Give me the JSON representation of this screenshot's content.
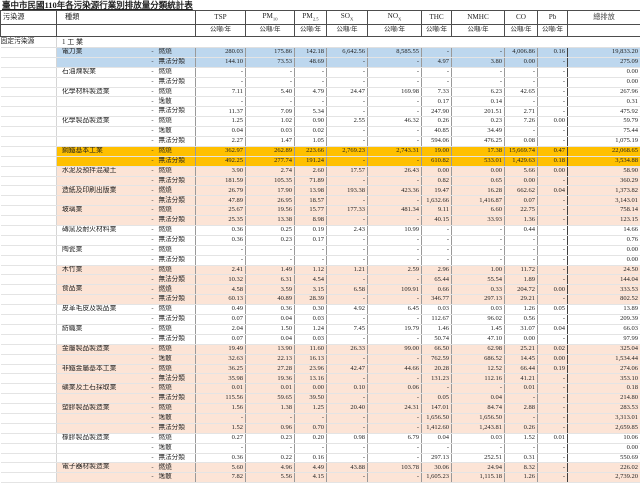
{
  "title": "臺中市民國110年各污染源行業別排放量分類統計表",
  "header": {
    "col_pollution_source": "污染源",
    "col_category": "種類",
    "unit": "公噸/年",
    "total_label": "總排放",
    "pollutants": [
      {
        "main": "TSP",
        "sub": ""
      },
      {
        "main": "PM",
        "sub": "10"
      },
      {
        "main": "PM",
        "sub": "2.5"
      },
      {
        "main": "SO",
        "sub": "X"
      },
      {
        "main": "NO",
        "sub": "X"
      },
      {
        "main": "THC",
        "sub": ""
      },
      {
        "main": "NMHC",
        "sub": ""
      },
      {
        "main": "CO",
        "sub": ""
      },
      {
        "main": "Pb",
        "sub": ""
      }
    ]
  },
  "source_group": {
    "source": "固定污染源",
    "sector": "1 工  業"
  },
  "colors": {
    "blue": "#BDD7EE",
    "gold": "#FFC000",
    "peach": "#FCE4D6",
    "white": "#FFFFFF"
  },
  "industries": [
    {
      "name": "電力業",
      "fill": "blue",
      "rows": [
        {
          "cat": "燃燒",
          "vals": [
            "280.03",
            "175.86",
            "142.18",
            "6,642.56",
            "8,585.55",
            "-",
            "-",
            "4,006.86",
            "0.16",
            "19,833.20"
          ]
        },
        {
          "cat": "無法分類",
          "vals": [
            "144.10",
            "73.53",
            "48.69",
            "-",
            "-",
            "4.97",
            "3.80",
            "0.00",
            "-",
            "275.09"
          ]
        }
      ]
    },
    {
      "name": "石油煉製業",
      "fill": "white",
      "rows": [
        {
          "cat": "燃燒",
          "vals": [
            "-",
            "-",
            "-",
            "-",
            "-",
            "-",
            "-",
            "-",
            "-",
            "0.00"
          ]
        },
        {
          "cat": "無法分類",
          "vals": [
            "-",
            "-",
            "-",
            "-",
            "-",
            "-",
            "-",
            "-",
            "-",
            "0.00"
          ]
        }
      ]
    },
    {
      "name": "化學材料製造業",
      "fill": "white",
      "rows": [
        {
          "cat": "燃燒",
          "vals": [
            "7.11",
            "5.40",
            "4.79",
            "24.47",
            "169.98",
            "7.33",
            "6.23",
            "42.65",
            "-",
            "267.96"
          ]
        },
        {
          "cat": "逸散",
          "vals": [
            "-",
            "-",
            "-",
            "-",
            "-",
            "0.17",
            "0.14",
            "-",
            "-",
            "0.31"
          ]
        },
        {
          "cat": "無法分類",
          "vals": [
            "11.37",
            "7.09",
            "5.34",
            "-",
            "-",
            "247.90",
            "201.51",
            "2.71",
            "-",
            "475.92"
          ]
        }
      ]
    },
    {
      "name": "化學製品製造業",
      "fill": "white",
      "rows": [
        {
          "cat": "燃燒",
          "vals": [
            "1.25",
            "1.02",
            "0.90",
            "2.55",
            "46.32",
            "0.26",
            "0.23",
            "7.26",
            "0.00",
            "59.79"
          ]
        },
        {
          "cat": "逸散",
          "vals": [
            "0.04",
            "0.03",
            "0.02",
            "-",
            "-",
            "40.85",
            "34.49",
            "-",
            "-",
            "75.44"
          ]
        },
        {
          "cat": "無法分類",
          "vals": [
            "2.27",
            "1.47",
            "1.05",
            "-",
            "-",
            "594.06",
            "476.25",
            "0.08",
            "-",
            "1,075.19"
          ]
        }
      ]
    },
    {
      "name": "鋼鐵基本工業",
      "fill": "gold",
      "rows": [
        {
          "cat": "燃燒",
          "vals": [
            "362.97",
            "262.89",
            "223.66",
            "2,769.23",
            "2,743.31",
            "19.00",
            "17.38",
            "15,669.74",
            "0.47",
            "22,068.65"
          ]
        },
        {
          "cat": "無法分類",
          "vals": [
            "492.25",
            "277.74",
            "191.24",
            "-",
            "-",
            "610.82",
            "533.01",
            "1,429.63",
            "0.18",
            "3,534.88"
          ]
        }
      ]
    },
    {
      "name": "水泥及預拌混凝土",
      "fill": "peach",
      "rows": [
        {
          "cat": "燃燒",
          "vals": [
            "3.90",
            "2.74",
            "2.60",
            "17.57",
            "26.43",
            "0.00",
            "0.00",
            "5.66",
            "0.00",
            "58.90"
          ]
        },
        {
          "cat": "無法分類",
          "vals": [
            "181.59",
            "105.35",
            "71.89",
            "-",
            "-",
            "0.82",
            "0.65",
            "0.00",
            "-",
            "360.29"
          ]
        }
      ]
    },
    {
      "name": "造紙及印刷出版業",
      "fill": "peach",
      "rows": [
        {
          "cat": "燃燒",
          "vals": [
            "26.79",
            "17.90",
            "13.98",
            "193.38",
            "423.36",
            "19.47",
            "16.28",
            "662.62",
            "0.04",
            "1,373.82"
          ]
        },
        {
          "cat": "無法分類",
          "vals": [
            "47.89",
            "26.95",
            "18.57",
            "-",
            "-",
            "1,632.66",
            "1,416.87",
            "0.07",
            "-",
            "3,143.01"
          ]
        }
      ]
    },
    {
      "name": "玻璃業",
      "fill": "peach",
      "rows": [
        {
          "cat": "燃燒",
          "vals": [
            "25.67",
            "19.56",
            "15.77",
            "177.33",
            "481.34",
            "9.11",
            "6.60",
            "22.75",
            "-",
            "758.14"
          ]
        },
        {
          "cat": "無法分類",
          "vals": [
            "25.35",
            "13.38",
            "8.98",
            "-",
            "-",
            "40.15",
            "33.93",
            "1.36",
            "-",
            "123.15"
          ]
        }
      ]
    },
    {
      "name": "磚窯及耐火材料業",
      "fill": "white",
      "rows": [
        {
          "cat": "燃燒",
          "vals": [
            "0.36",
            "0.25",
            "0.19",
            "2.43",
            "10.99",
            "-",
            "-",
            "0.44",
            "-",
            "14.66"
          ]
        },
        {
          "cat": "無法分類",
          "vals": [
            "0.36",
            "0.23",
            "0.17",
            "-",
            "-",
            "-",
            "-",
            "-",
            "-",
            "0.76"
          ]
        }
      ]
    },
    {
      "name": "陶瓷業",
      "fill": "white",
      "rows": [
        {
          "cat": "燃燒",
          "vals": [
            "-",
            "-",
            "-",
            "-",
            "-",
            "-",
            "-",
            "-",
            "-",
            "0.00"
          ]
        },
        {
          "cat": "無法分類",
          "vals": [
            "-",
            "-",
            "-",
            "-",
            "-",
            "-",
            "-",
            "-",
            "-",
            "0.00"
          ]
        }
      ]
    },
    {
      "name": "木竹業",
      "fill": "peach",
      "rows": [
        {
          "cat": "燃燒",
          "vals": [
            "2.41",
            "1.49",
            "1.12",
            "1.21",
            "2.59",
            "2.96",
            "1.00",
            "11.72",
            "-",
            "24.50"
          ]
        },
        {
          "cat": "無法分類",
          "vals": [
            "10.32",
            "6.31",
            "4.54",
            "-",
            "-",
            "65.44",
            "55.54",
            "1.89",
            "-",
            "144.04"
          ]
        }
      ]
    },
    {
      "name": "食品業",
      "fill": "peach",
      "rows": [
        {
          "cat": "燃燒",
          "vals": [
            "4.58",
            "3.59",
            "3.15",
            "6.58",
            "109.91",
            "0.66",
            "0.33",
            "204.72",
            "0.00",
            "333.53"
          ]
        },
        {
          "cat": "無法分類",
          "vals": [
            "60.13",
            "40.89",
            "28.39",
            "-",
            "-",
            "346.77",
            "297.13",
            "29.21",
            "-",
            "802.52"
          ]
        }
      ]
    },
    {
      "name": "皮革毛皮及製品業",
      "fill": "white",
      "rows": [
        {
          "cat": "燃燒",
          "vals": [
            "0.49",
            "0.36",
            "0.30",
            "4.92",
            "6.45",
            "0.03",
            "0.03",
            "1.26",
            "0.05",
            "13.89"
          ]
        },
        {
          "cat": "無法分類",
          "vals": [
            "0.07",
            "0.04",
            "0.03",
            "-",
            "-",
            "112.67",
            "96.02",
            "0.56",
            "-",
            "209.39"
          ]
        }
      ]
    },
    {
      "name": "紡織業",
      "fill": "white",
      "rows": [
        {
          "cat": "燃燒",
          "vals": [
            "2.04",
            "1.50",
            "1.24",
            "7.45",
            "19.79",
            "1.46",
            "1.45",
            "31.07",
            "0.04",
            "66.03"
          ]
        },
        {
          "cat": "無法分類",
          "vals": [
            "0.07",
            "0.04",
            "0.03",
            "-",
            "-",
            "50.74",
            "47.10",
            "0.00",
            "-",
            "97.99"
          ]
        }
      ]
    },
    {
      "name": "金屬製品製造業",
      "fill": "peach",
      "rows": [
        {
          "cat": "燃燒",
          "vals": [
            "19.49",
            "13.90",
            "11.60",
            "26.33",
            "99.00",
            "66.50",
            "62.98",
            "25.21",
            "0.02",
            "325.04"
          ]
        },
        {
          "cat": "逸散",
          "vals": [
            "32.63",
            "22.13",
            "16.13",
            "-",
            "-",
            "762.59",
            "686.52",
            "14.45",
            "0.00",
            "1,534.44"
          ]
        }
      ]
    },
    {
      "name": "非鐵金屬基本工業",
      "fill": "peach",
      "rows": [
        {
          "cat": "燃燒",
          "vals": [
            "36.25",
            "27.28",
            "23.96",
            "42.47",
            "44.66",
            "20.28",
            "12.52",
            "66.44",
            "0.19",
            "274.06"
          ]
        },
        {
          "cat": "無法分類",
          "vals": [
            "35.98",
            "19.36",
            "13.16",
            "-",
            "-",
            "131.23",
            "112.16",
            "41.21",
            "-",
            "353.10"
          ]
        }
      ]
    },
    {
      "name": "礦業及土石採取業",
      "fill": "peach",
      "rows": [
        {
          "cat": "燃燒",
          "vals": [
            "0.01",
            "0.01",
            "0.00",
            "0.10",
            "0.06",
            "-",
            "-",
            "0.01",
            "-",
            "0.18"
          ]
        },
        {
          "cat": "無法分類",
          "vals": [
            "115.56",
            "59.65",
            "39.50",
            "-",
            "-",
            "0.05",
            "0.04",
            "-",
            "-",
            "214.80"
          ]
        }
      ]
    },
    {
      "name": "塑膠製品製造業",
      "fill": "peach",
      "rows": [
        {
          "cat": "燃燒",
          "vals": [
            "1.56",
            "1.38",
            "1.25",
            "20.40",
            "24.31",
            "147.01",
            "84.74",
            "2.88",
            "-",
            "283.53"
          ]
        },
        {
          "cat": "逸散",
          "vals": [
            "-",
            "-",
            "-",
            "-",
            "-",
            "1,656.50",
            "1,656.50",
            "-",
            "-",
            "3,313.01"
          ]
        },
        {
          "cat": "無法分類",
          "vals": [
            "1.52",
            "0.96",
            "0.70",
            "-",
            "-",
            "1,412.60",
            "1,243.81",
            "0.26",
            "-",
            "2,659.85"
          ]
        }
      ]
    },
    {
      "name": "橡膠製品製造業",
      "fill": "white",
      "rows": [
        {
          "cat": "燃燒",
          "vals": [
            "0.27",
            "0.23",
            "0.20",
            "0.98",
            "6.79",
            "0.04",
            "0.03",
            "1.52",
            "0.01",
            "10.06"
          ]
        },
        {
          "cat": "逸散",
          "vals": [
            "-",
            "-",
            "-",
            "-",
            "-",
            "-",
            "-",
            "-",
            "-",
            "0.00"
          ]
        },
        {
          "cat": "無法分類",
          "vals": [
            "0.36",
            "0.22",
            "0.16",
            "-",
            "-",
            "297.13",
            "252.51",
            "0.31",
            "-",
            "550.69"
          ]
        }
      ]
    },
    {
      "name": "電子器材製造業",
      "fill": "peach",
      "rows": [
        {
          "cat": "燃燒",
          "vals": [
            "5.60",
            "4.96",
            "4.49",
            "43.88",
            "103.78",
            "30.06",
            "24.94",
            "8.32",
            "-",
            "226.02"
          ]
        },
        {
          "cat": "逸散",
          "vals": [
            "7.82",
            "5.56",
            "4.15",
            "-",
            "-",
            "1,605.23",
            "1,115.18",
            "1.26",
            "-",
            "2,739.20"
          ]
        }
      ]
    }
  ]
}
